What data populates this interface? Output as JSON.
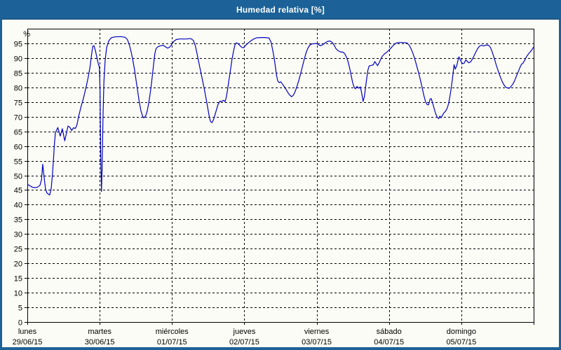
{
  "window": {
    "title": "Humedad relativa [%]"
  },
  "colors": {
    "titlebar_bg": "#1c6298",
    "titlebar_text": "#ffffff",
    "frame": "#1c6298",
    "content_bg": "#fcfcf6",
    "grid": "#000000",
    "axis_text": "#000000",
    "line": "#0000bf"
  },
  "chart_data": {
    "type": "line",
    "title": "Humedad relativa [%]",
    "ylabel": "%",
    "ylim": [
      0,
      100
    ],
    "x_range_hours": 168,
    "grid": "dashed",
    "legend": "none",
    "y_ticks": [
      0,
      5,
      10,
      15,
      20,
      25,
      30,
      35,
      40,
      45,
      50,
      55,
      60,
      65,
      70,
      75,
      80,
      85,
      90,
      95
    ],
    "x_days": [
      {
        "name": "lunes",
        "date": "29/06/15"
      },
      {
        "name": "martes",
        "date": "30/06/15"
      },
      {
        "name": "miércoles",
        "date": "01/07/15"
      },
      {
        "name": "jueves",
        "date": "02/07/15"
      },
      {
        "name": "viernes",
        "date": "03/07/15"
      },
      {
        "name": "sábado",
        "date": "04/07/15"
      },
      {
        "name": "domingo",
        "date": "05/07/15"
      }
    ],
    "series": [
      {
        "name": "Humedad relativa",
        "unit": "%",
        "color": "#0000bf",
        "points": [
          [
            0,
            47.0
          ],
          [
            0.8,
            46.5
          ],
          [
            1.6,
            46.0
          ],
          [
            2.6,
            45.8
          ],
          [
            3.4,
            46.0
          ],
          [
            4.2,
            46.6
          ],
          [
            4.7,
            48.5
          ],
          [
            5.1,
            53.8
          ],
          [
            5.5,
            50.0
          ],
          [
            6.0,
            45.5
          ],
          [
            6.5,
            44.0
          ],
          [
            7.0,
            43.6
          ],
          [
            7.4,
            43.3
          ],
          [
            7.9,
            45.5
          ],
          [
            8.3,
            50.0
          ],
          [
            8.7,
            56.0
          ],
          [
            9.0,
            61.0
          ],
          [
            9.3,
            64.5
          ],
          [
            10.1,
            66.3
          ],
          [
            10.9,
            63.4
          ],
          [
            11.6,
            65.9
          ],
          [
            12.4,
            61.8
          ],
          [
            13.0,
            64.5
          ],
          [
            13.5,
            66.8
          ],
          [
            14.1,
            66.4
          ],
          [
            14.7,
            65.3
          ],
          [
            15.3,
            66.2
          ],
          [
            15.9,
            66.0
          ],
          [
            16.4,
            67.0
          ],
          [
            17.0,
            70.0
          ],
          [
            17.7,
            73.0
          ],
          [
            18.4,
            75.5
          ],
          [
            19.0,
            78.0
          ],
          [
            19.6,
            80.5
          ],
          [
            20.2,
            83.5
          ],
          [
            20.8,
            87.0
          ],
          [
            21.3,
            91.0
          ],
          [
            21.7,
            94.0
          ],
          [
            22.1,
            94.2
          ],
          [
            22.6,
            92.5
          ],
          [
            23.1,
            90.0
          ],
          [
            23.6,
            87.8
          ],
          [
            23.9,
            87.0
          ],
          [
            24.1,
            80.0
          ],
          [
            24.3,
            60.0
          ],
          [
            24.6,
            44.5
          ],
          [
            24.8,
            52.0
          ],
          [
            25.1,
            70.0
          ],
          [
            25.4,
            82.0
          ],
          [
            25.8,
            89.0
          ],
          [
            26.3,
            93.5
          ],
          [
            27.0,
            95.8
          ],
          [
            27.8,
            96.9
          ],
          [
            29.0,
            97.2
          ],
          [
            31.0,
            97.3
          ],
          [
            32.4,
            97.1
          ],
          [
            33.2,
            96.3
          ],
          [
            33.9,
            94.3
          ],
          [
            34.5,
            91.8
          ],
          [
            35.1,
            88.8
          ],
          [
            35.6,
            85.8
          ],
          [
            36.1,
            82.3
          ],
          [
            36.6,
            78.8
          ],
          [
            37.1,
            75.3
          ],
          [
            37.7,
            72.0
          ],
          [
            38.3,
            70.0
          ],
          [
            38.7,
            69.6
          ],
          [
            39.3,
            70.4
          ],
          [
            39.8,
            72.0
          ],
          [
            40.3,
            74.8
          ],
          [
            40.7,
            77.5
          ],
          [
            41.1,
            80.5
          ],
          [
            41.5,
            84.3
          ],
          [
            41.9,
            88.0
          ],
          [
            42.3,
            91.5
          ],
          [
            42.7,
            93.2
          ],
          [
            43.4,
            93.9
          ],
          [
            44.2,
            94.2
          ],
          [
            45.2,
            94.3
          ],
          [
            46.0,
            93.7
          ],
          [
            46.5,
            93.4
          ],
          [
            47.1,
            93.6
          ],
          [
            47.7,
            94.3
          ],
          [
            48.0,
            94.8
          ],
          [
            48.6,
            95.7
          ],
          [
            49.4,
            96.3
          ],
          [
            50.5,
            96.5
          ],
          [
            52.5,
            96.5
          ],
          [
            54.3,
            96.6
          ],
          [
            55.1,
            96.0
          ],
          [
            55.7,
            94.3
          ],
          [
            56.3,
            91.5
          ],
          [
            56.9,
            88.5
          ],
          [
            57.5,
            85.5
          ],
          [
            58.1,
            82.5
          ],
          [
            58.7,
            79.5
          ],
          [
            59.3,
            76.3
          ],
          [
            59.9,
            72.8
          ],
          [
            60.4,
            69.8
          ],
          [
            60.8,
            68.3
          ],
          [
            61.3,
            68.0
          ],
          [
            61.9,
            69.3
          ],
          [
            62.6,
            71.8
          ],
          [
            63.3,
            74.2
          ],
          [
            63.9,
            75.3
          ],
          [
            64.5,
            75.2
          ],
          [
            65.1,
            75.6
          ],
          [
            65.6,
            75.1
          ],
          [
            66.0,
            76.5
          ],
          [
            66.4,
            79.0
          ],
          [
            66.9,
            82.5
          ],
          [
            67.4,
            86.0
          ],
          [
            67.9,
            89.5
          ],
          [
            68.4,
            92.3
          ],
          [
            68.9,
            94.5
          ],
          [
            69.4,
            95.2
          ],
          [
            70.0,
            94.8
          ],
          [
            70.6,
            94.2
          ],
          [
            71.2,
            93.6
          ],
          [
            71.8,
            93.5
          ],
          [
            72.0,
            93.8
          ],
          [
            72.7,
            94.6
          ],
          [
            73.4,
            95.2
          ],
          [
            74.2,
            95.9
          ],
          [
            75.1,
            96.5
          ],
          [
            76.1,
            96.9
          ],
          [
            77.5,
            97.0
          ],
          [
            79.0,
            97.0
          ],
          [
            80.2,
            96.8
          ],
          [
            80.9,
            95.3
          ],
          [
            81.4,
            92.8
          ],
          [
            81.9,
            90.0
          ],
          [
            82.3,
            87.0
          ],
          [
            82.7,
            84.0
          ],
          [
            83.1,
            82.2
          ],
          [
            83.6,
            81.6
          ],
          [
            84.1,
            81.9
          ],
          [
            84.6,
            81.2
          ],
          [
            85.2,
            80.3
          ],
          [
            85.9,
            79.2
          ],
          [
            86.6,
            78.0
          ],
          [
            87.2,
            77.2
          ],
          [
            87.7,
            76.8
          ],
          [
            88.3,
            77.4
          ],
          [
            88.9,
            78.7
          ],
          [
            89.5,
            80.4
          ],
          [
            90.1,
            82.4
          ],
          [
            90.7,
            84.8
          ],
          [
            91.3,
            87.2
          ],
          [
            91.9,
            89.7
          ],
          [
            92.5,
            91.8
          ],
          [
            93.1,
            93.4
          ],
          [
            93.7,
            94.4
          ],
          [
            94.4,
            94.8
          ],
          [
            95.2,
            94.9
          ],
          [
            96.0,
            94.9
          ],
          [
            96.7,
            94.5
          ],
          [
            97.3,
            94.2
          ],
          [
            98.1,
            94.6
          ],
          [
            98.9,
            95.2
          ],
          [
            99.7,
            95.7
          ],
          [
            100.5,
            95.8
          ],
          [
            101.2,
            95.3
          ],
          [
            101.8,
            94.4
          ],
          [
            102.4,
            93.2
          ],
          [
            103.1,
            92.5
          ],
          [
            103.9,
            92.1
          ],
          [
            104.7,
            92.0
          ],
          [
            105.3,
            91.5
          ],
          [
            105.9,
            90.3
          ],
          [
            106.4,
            88.8
          ],
          [
            106.9,
            86.8
          ],
          [
            107.4,
            84.3
          ],
          [
            107.9,
            81.8
          ],
          [
            108.3,
            80.4
          ],
          [
            108.8,
            79.5
          ],
          [
            109.4,
            80.3
          ],
          [
            110.0,
            79.7
          ],
          [
            110.5,
            80.2
          ],
          [
            111.0,
            77.7
          ],
          [
            111.4,
            75.2
          ],
          [
            111.8,
            76.7
          ],
          [
            112.2,
            79.7
          ],
          [
            112.6,
            83.0
          ],
          [
            113.0,
            85.8
          ],
          [
            113.4,
            87.3
          ],
          [
            114.1,
            87.5
          ],
          [
            114.8,
            87.7
          ],
          [
            115.3,
            88.8
          ],
          [
            115.8,
            88.0
          ],
          [
            116.2,
            87.4
          ],
          [
            116.7,
            88.3
          ],
          [
            117.2,
            89.5
          ],
          [
            117.8,
            90.7
          ],
          [
            118.5,
            91.4
          ],
          [
            119.3,
            92.0
          ],
          [
            120.0,
            92.7
          ],
          [
            120.8,
            93.6
          ],
          [
            121.6,
            94.5
          ],
          [
            122.4,
            95.1
          ],
          [
            123.4,
            95.3
          ],
          [
            124.8,
            95.3
          ],
          [
            126.0,
            95.1
          ],
          [
            126.7,
            94.4
          ],
          [
            127.3,
            93.2
          ],
          [
            127.9,
            91.7
          ],
          [
            128.4,
            90.2
          ],
          [
            128.9,
            88.4
          ],
          [
            129.5,
            86.2
          ],
          [
            130.1,
            83.9
          ],
          [
            130.6,
            81.7
          ],
          [
            131.1,
            79.4
          ],
          [
            131.6,
            77.1
          ],
          [
            132.1,
            75.2
          ],
          [
            132.6,
            74.2
          ],
          [
            133.1,
            74.0
          ],
          [
            133.6,
            75.9
          ],
          [
            134.0,
            76.2
          ],
          [
            134.5,
            74.6
          ],
          [
            135.0,
            72.7
          ],
          [
            135.5,
            71.0
          ],
          [
            136.0,
            69.8
          ],
          [
            136.5,
            69.3
          ],
          [
            136.9,
            70.2
          ],
          [
            137.3,
            69.6
          ],
          [
            137.8,
            70.6
          ],
          [
            138.3,
            71.4
          ],
          [
            138.8,
            71.9
          ],
          [
            139.3,
            72.9
          ],
          [
            139.8,
            74.5
          ],
          [
            140.2,
            76.8
          ],
          [
            140.6,
            79.3
          ],
          [
            141.0,
            82.5
          ],
          [
            141.3,
            85.2
          ],
          [
            141.6,
            87.7
          ],
          [
            142.0,
            86.2
          ],
          [
            142.5,
            87.5
          ],
          [
            142.9,
            89.2
          ],
          [
            143.2,
            90.4
          ],
          [
            143.6,
            89.6
          ],
          [
            144.0,
            88.6
          ],
          [
            144.5,
            88.1
          ],
          [
            145.0,
            88.3
          ],
          [
            145.5,
            89.4
          ],
          [
            146.0,
            88.8
          ],
          [
            146.5,
            88.4
          ],
          [
            147.0,
            88.6
          ],
          [
            147.6,
            89.5
          ],
          [
            148.2,
            90.7
          ],
          [
            148.8,
            92.0
          ],
          [
            149.4,
            93.2
          ],
          [
            150.0,
            94.0
          ],
          [
            150.7,
            94.4
          ],
          [
            151.4,
            94.1
          ],
          [
            152.1,
            94.4
          ],
          [
            153.0,
            94.4
          ],
          [
            153.6,
            93.7
          ],
          [
            154.1,
            92.5
          ],
          [
            154.6,
            91.0
          ],
          [
            155.1,
            89.3
          ],
          [
            155.6,
            87.6
          ],
          [
            156.1,
            86.0
          ],
          [
            156.6,
            84.5
          ],
          [
            157.1,
            83.1
          ],
          [
            157.6,
            81.9
          ],
          [
            158.1,
            80.9
          ],
          [
            158.7,
            80.1
          ],
          [
            159.3,
            79.8
          ],
          [
            159.9,
            79.7
          ],
          [
            160.5,
            80.3
          ],
          [
            161.1,
            81.1
          ],
          [
            161.7,
            82.3
          ],
          [
            162.3,
            83.9
          ],
          [
            162.9,
            85.4
          ],
          [
            163.5,
            86.9
          ],
          [
            164.0,
            87.9
          ],
          [
            164.5,
            88.3
          ],
          [
            165.0,
            89.2
          ],
          [
            165.6,
            90.4
          ],
          [
            166.2,
            91.3
          ],
          [
            166.8,
            92.0
          ],
          [
            167.4,
            92.8
          ],
          [
            168.0,
            93.7
          ]
        ]
      }
    ]
  }
}
